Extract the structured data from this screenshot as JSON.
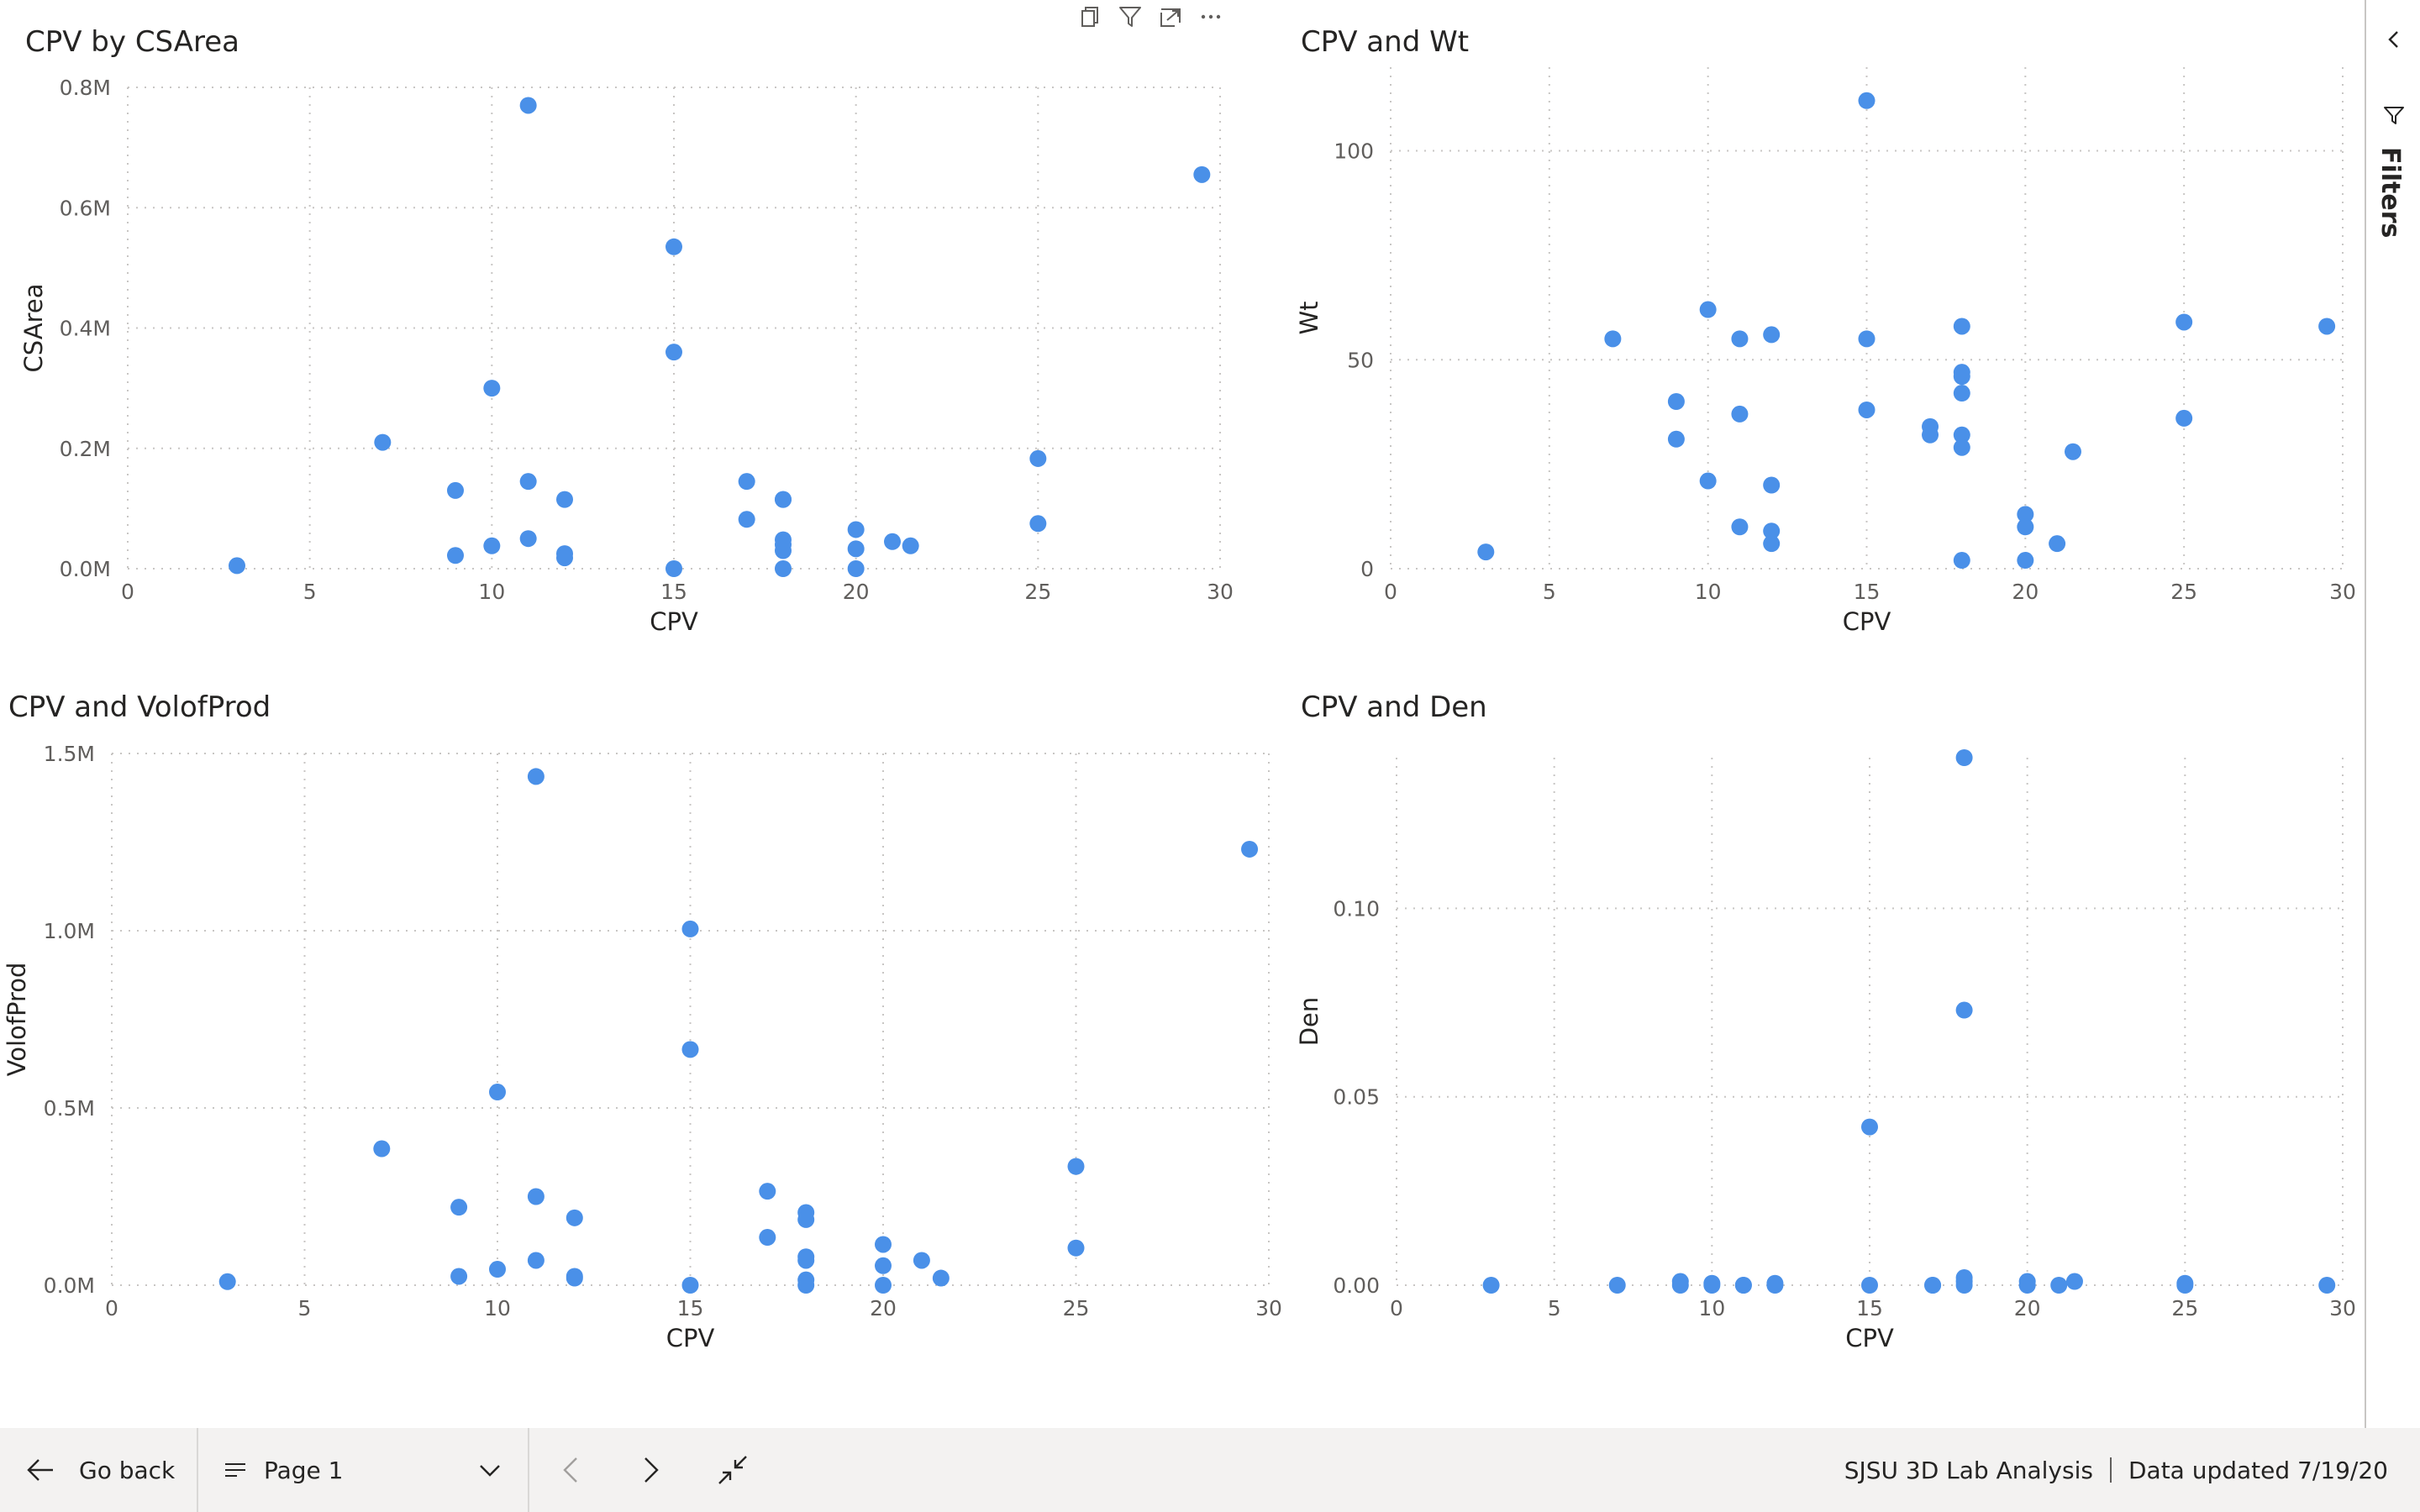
{
  "visual_header": {
    "icons": [
      "copy-icon",
      "filter-icon",
      "focus-mode-icon",
      "more-options-icon"
    ]
  },
  "filters_pane": {
    "label": "Filters"
  },
  "footer": {
    "go_back": "Go back",
    "page": "Page 1",
    "report_name": "SJSU 3D Lab Analysis",
    "data_updated": "Data updated 7/19/20"
  },
  "colors": {
    "marker": "#4a90e8",
    "gridline": "#c8c6c4",
    "footer_bg": "#f3f2f1"
  },
  "chart_data": [
    {
      "id": "csarea",
      "type": "scatter",
      "title": "CPV by CSArea",
      "xlabel": "CPV",
      "ylabel": "CSArea",
      "xlim": [
        0,
        30
      ],
      "ylim": [
        0,
        800000
      ],
      "xticks": [
        0,
        5,
        10,
        15,
        20,
        25,
        30
      ],
      "xtick_labels": [
        "0",
        "5",
        "10",
        "15",
        "20",
        "25",
        "30"
      ],
      "yticks": [
        0,
        200000,
        400000,
        600000,
        800000
      ],
      "ytick_labels": [
        "0.0M",
        "0.2M",
        "0.4M",
        "0.6M",
        "0.8M"
      ],
      "grid": true,
      "x": [
        3,
        7,
        9,
        9,
        10,
        10,
        11,
        11,
        11,
        12,
        12,
        12,
        15,
        15,
        15,
        17,
        17,
        18,
        18,
        18,
        18,
        18,
        18,
        20,
        20,
        20,
        21,
        21.5,
        25,
        25,
        29.5
      ],
      "y": [
        5000,
        210000,
        130000,
        22000,
        38000,
        300000,
        770000,
        145000,
        50000,
        115000,
        25000,
        18000,
        535000,
        360000,
        0,
        145000,
        82000,
        115000,
        115000,
        48000,
        30000,
        40000,
        0,
        65000,
        33000,
        0,
        45000,
        38000,
        183000,
        75000,
        655000
      ]
    },
    {
      "id": "wt",
      "type": "scatter",
      "title": "CPV and Wt",
      "xlabel": "CPV",
      "ylabel": "Wt",
      "xlim": [
        0,
        30
      ],
      "ylim": [
        0,
        120
      ],
      "xticks": [
        0,
        5,
        10,
        15,
        20,
        25,
        30
      ],
      "xtick_labels": [
        "0",
        "5",
        "10",
        "15",
        "20",
        "25",
        "30"
      ],
      "yticks": [
        0,
        50,
        100
      ],
      "ytick_labels": [
        "0",
        "50",
        "100"
      ],
      "grid": true,
      "x": [
        3,
        7,
        9,
        9,
        10,
        10,
        11,
        11,
        11,
        12,
        12,
        12,
        12,
        15,
        15,
        15,
        17,
        17,
        18,
        18,
        18,
        18,
        18,
        18,
        18,
        20,
        20,
        20,
        21,
        21.5,
        25,
        25,
        29.5
      ],
      "y": [
        4,
        55,
        40,
        31,
        62,
        21,
        55,
        37,
        10,
        56,
        20,
        9,
        6,
        112,
        55,
        38,
        34,
        32,
        58,
        47,
        46,
        42,
        32,
        29,
        2,
        13,
        10,
        2,
        6,
        28,
        59,
        36,
        58
      ]
    },
    {
      "id": "volofprod",
      "type": "scatter",
      "title": "CPV and VolofProd",
      "xlabel": "CPV",
      "ylabel": "VolofProd",
      "xlim": [
        0,
        30
      ],
      "ylim": [
        0,
        1500000
      ],
      "xticks": [
        0,
        5,
        10,
        15,
        20,
        25,
        30
      ],
      "xtick_labels": [
        "0",
        "5",
        "10",
        "15",
        "20",
        "25",
        "30"
      ],
      "yticks": [
        0,
        500000,
        1000000,
        1500000
      ],
      "ytick_labels": [
        "0.0M",
        "0.5M",
        "1.0M",
        "1.5M"
      ],
      "grid": true,
      "x": [
        3,
        7,
        9,
        9,
        10,
        10,
        11,
        11,
        11,
        12,
        12,
        12,
        15,
        15,
        15,
        17,
        17,
        18,
        18,
        18,
        18,
        18,
        18,
        20,
        20,
        20,
        21,
        21.5,
        25,
        25,
        29.5
      ],
      "y": [
        10000,
        385000,
        220000,
        25000,
        545000,
        45000,
        1435000,
        250000,
        70000,
        190000,
        25000,
        20000,
        1005000,
        665000,
        0,
        265000,
        135000,
        205000,
        185000,
        80000,
        70000,
        15000,
        0,
        115000,
        55000,
        0,
        70000,
        20000,
        335000,
        105000,
        1230000
      ]
    },
    {
      "id": "den",
      "type": "scatter",
      "title": "CPV and Den",
      "xlabel": "CPV",
      "ylabel": "Den",
      "xlim": [
        0,
        30
      ],
      "ylim": [
        0,
        0.14
      ],
      "xticks": [
        0,
        5,
        10,
        15,
        20,
        25,
        30
      ],
      "xtick_labels": [
        "0",
        "5",
        "10",
        "15",
        "20",
        "25",
        "30"
      ],
      "yticks": [
        0,
        0.05,
        0.1
      ],
      "ytick_labels": [
        "0.00",
        "0.05",
        "0.10"
      ],
      "grid": true,
      "x": [
        3,
        7,
        9,
        9,
        10,
        10,
        11,
        11,
        12,
        12,
        15,
        15,
        17,
        17,
        18,
        18,
        18,
        18,
        18,
        20,
        20,
        21,
        21.5,
        25,
        25,
        29.5
      ],
      "y": [
        0,
        0,
        0.001,
        0,
        0.0005,
        0,
        0,
        0,
        0.0005,
        0,
        0.042,
        0,
        0,
        0,
        0.14,
        0.073,
        0.002,
        0.001,
        0,
        0.001,
        0,
        0,
        0.001,
        0.0005,
        0,
        0
      ]
    }
  ]
}
